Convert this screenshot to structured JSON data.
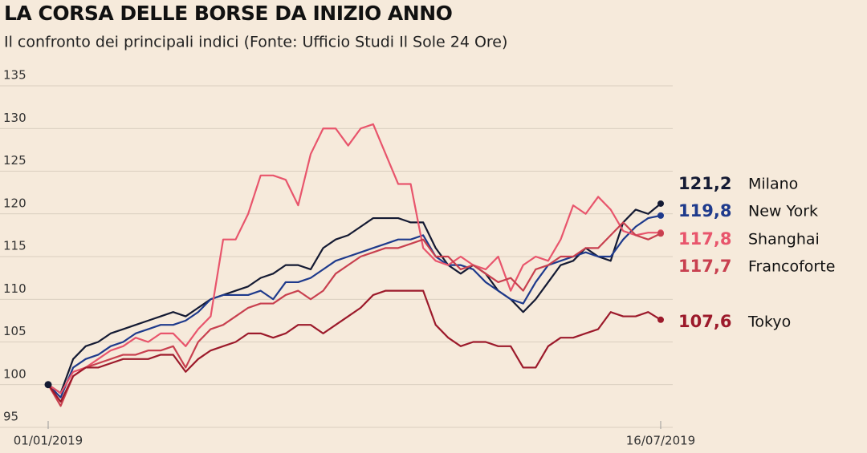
{
  "chart_data": {
    "type": "line",
    "title": "LA CORSA DELLE BORSE DA INIZIO ANNO",
    "subtitle": "Il confronto dei principali indici (Fonte: Ufficio Studi Il Sole 24 Ore)",
    "categories": [
      "01/01/2019",
      null,
      null,
      null,
      null,
      null,
      null,
      null,
      null,
      null,
      null,
      null,
      null,
      null,
      null,
      null,
      null,
      null,
      null,
      null,
      null,
      null,
      null,
      null,
      null,
      null,
      null,
      null,
      null,
      null,
      null,
      null,
      null,
      null,
      null,
      null,
      null,
      null,
      null,
      null,
      null,
      null,
      null,
      null,
      null,
      null,
      null,
      null,
      null,
      "16/07/2019"
    ],
    "ylim": [
      95,
      135
    ],
    "yticks": [
      95,
      100,
      105,
      110,
      115,
      120,
      125,
      130,
      135
    ],
    "grid": true,
    "series": [
      {
        "name": "Milano",
        "color": "#141a33",
        "value_label": "121,2",
        "values": [
          100,
          99,
          103,
          104.5,
          105,
          106,
          106.5,
          107,
          107.5,
          108,
          108.5,
          108,
          109,
          110,
          110.5,
          111,
          111.5,
          112.5,
          113,
          114,
          114,
          113.5,
          116,
          117,
          117.5,
          118.5,
          119.5,
          119.5,
          119.5,
          119,
          119,
          116,
          114,
          113,
          114,
          113,
          111,
          110,
          108.5,
          110,
          112,
          114,
          114.5,
          116,
          115,
          114.5,
          119,
          120.5,
          120,
          121.2
        ]
      },
      {
        "name": "New York",
        "color": "#1e3a8c",
        "value_label": "119,8",
        "values": [
          100,
          98.5,
          102,
          103,
          103.5,
          104.5,
          105,
          106,
          106.5,
          107,
          107,
          107.5,
          108.5,
          110,
          110.5,
          110.5,
          110.5,
          111,
          110,
          112,
          112,
          112.5,
          113.5,
          114.5,
          115,
          115.5,
          116,
          116.5,
          117,
          117,
          117.5,
          115,
          114,
          114,
          113.5,
          112,
          111,
          110,
          109.5,
          112,
          114,
          114.5,
          115,
          115.5,
          115,
          115,
          117,
          118.5,
          119.5,
          119.8
        ]
      },
      {
        "name": "Shanghai",
        "color": "#e8556c",
        "value_label": "117,8",
        "values": [
          100,
          99,
          101.5,
          102,
          103,
          104,
          104.5,
          105.5,
          105,
          106,
          106,
          104.5,
          106.5,
          108,
          117,
          117,
          120,
          124.5,
          124.5,
          124,
          121,
          127,
          130,
          130,
          128,
          130,
          130.5,
          127,
          123.5,
          123.5,
          116,
          114.5,
          114,
          115,
          114,
          113.5,
          115,
          111,
          114,
          115,
          114.5,
          117,
          121,
          120,
          122,
          120.5,
          118,
          117.5,
          117.8,
          117.8
        ]
      },
      {
        "name": "Francoforte",
        "color": "#c8404f",
        "value_label": "117,7",
        "values": [
          100,
          97.5,
          101,
          102,
          102.5,
          103,
          103.5,
          103.5,
          104,
          104,
          104.5,
          102,
          105,
          106.5,
          107,
          108,
          109,
          109.5,
          109.5,
          110.5,
          111,
          110,
          111,
          113,
          114,
          115,
          115.5,
          116,
          116,
          116.5,
          117,
          115,
          115,
          113.5,
          114,
          113,
          112,
          112.5,
          111,
          113.5,
          114,
          115,
          115,
          116,
          116,
          117.5,
          119,
          117.5,
          117,
          117.7
        ]
      },
      {
        "name": "Tokyo",
        "color": "#9c1a2b",
        "value_label": "107,6",
        "values": [
          100,
          98,
          101,
          102,
          102,
          102.5,
          103,
          103,
          103,
          103.5,
          103.5,
          101.5,
          103,
          104,
          104.5,
          105,
          106,
          106,
          105.5,
          106,
          107,
          107,
          106,
          107,
          108,
          109,
          110.5,
          111,
          111,
          111,
          111,
          107,
          105.5,
          104.5,
          105,
          105,
          104.5,
          104.5,
          102,
          102,
          104.5,
          105.5,
          105.5,
          106,
          106.5,
          108.5,
          108,
          108,
          108.5,
          107.6
        ]
      }
    ]
  }
}
